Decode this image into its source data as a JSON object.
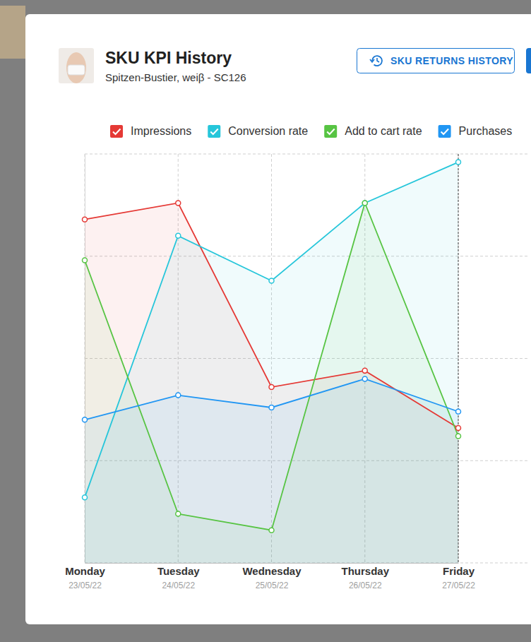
{
  "header": {
    "title": "SKU KPI History",
    "subtitle": "Spitzen-Bustier, weiβ - SC126",
    "button": "SKU RETURNS HISTORY"
  },
  "chart_data": {
    "type": "area",
    "categories": [
      "Monday",
      "Tuesday",
      "Wednesday",
      "Thursday",
      "Friday"
    ],
    "dates": [
      "23/05/22",
      "24/05/22",
      "25/05/22",
      "26/05/22",
      "27/05/22"
    ],
    "series": [
      {
        "name": "Impressions",
        "color": "#e53935",
        "values": [
          84,
          88,
          43,
          47,
          33
        ]
      },
      {
        "name": "Conversion rate",
        "color": "#26c6da",
        "values": [
          16,
          80,
          69,
          88,
          98
        ]
      },
      {
        "name": "Add to cart rate",
        "color": "#57c443",
        "values": [
          74,
          12,
          8,
          88,
          31
        ]
      },
      {
        "name": "Purchases",
        "color": "#2196f3",
        "values": [
          35,
          41,
          38,
          45,
          37
        ]
      }
    ],
    "ylim": [
      0,
      100
    ],
    "yticks": [
      0,
      25,
      50,
      75,
      100
    ],
    "grid": true,
    "tick_labels": "x",
    "legend": "top",
    "marker": "circle"
  }
}
